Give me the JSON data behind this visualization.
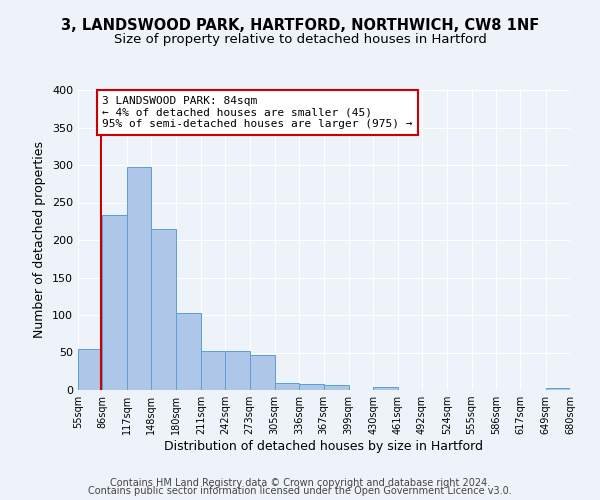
{
  "title1": "3, LANDSWOOD PARK, HARTFORD, NORTHWICH, CW8 1NF",
  "title2": "Size of property relative to detached houses in Hartford",
  "xlabel": "Distribution of detached houses by size in Hartford",
  "ylabel": "Number of detached properties",
  "bin_edges": [
    55,
    86,
    117,
    148,
    180,
    211,
    242,
    273,
    305,
    336,
    367,
    399,
    430,
    461,
    492,
    524,
    555,
    586,
    617,
    649,
    680
  ],
  "bin_labels": [
    "55sqm",
    "86sqm",
    "117sqm",
    "148sqm",
    "180sqm",
    "211sqm",
    "242sqm",
    "273sqm",
    "305sqm",
    "336sqm",
    "367sqm",
    "399sqm",
    "430sqm",
    "461sqm",
    "492sqm",
    "524sqm",
    "555sqm",
    "586sqm",
    "617sqm",
    "649sqm",
    "680sqm"
  ],
  "bar_heights": [
    55,
    233,
    297,
    215,
    103,
    52,
    52,
    47,
    9,
    8,
    7,
    0,
    4,
    0,
    0,
    0,
    0,
    0,
    0,
    3
  ],
  "bar_color": "#aec6e8",
  "bar_edge_color": "#5a9fd4",
  "ylim": [
    0,
    400
  ],
  "yticks": [
    0,
    50,
    100,
    150,
    200,
    250,
    300,
    350,
    400
  ],
  "property_size": 84,
  "red_line_color": "#cc0000",
  "annotation_line1": "3 LANDSWOOD PARK: 84sqm",
  "annotation_line2": "← 4% of detached houses are smaller (45)",
  "annotation_line3": "95% of semi-detached houses are larger (975) →",
  "annotation_box_color": "#ffffff",
  "annotation_border_color": "#cc0000",
  "footer_line1": "Contains HM Land Registry data © Crown copyright and database right 2024.",
  "footer_line2": "Contains public sector information licensed under the Open Government Licence v3.0.",
  "background_color": "#eef2f9",
  "plot_bg_color": "#eef2f9",
  "title1_fontsize": 10.5,
  "title2_fontsize": 9.5,
  "footer_fontsize": 7.0,
  "grid_color": "#ffffff"
}
